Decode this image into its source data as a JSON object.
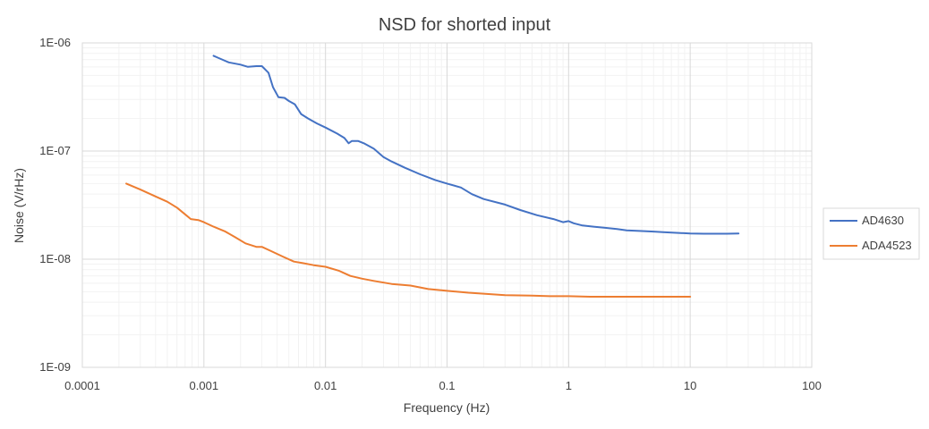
{
  "chart_data": {
    "type": "line",
    "title": "NSD for shorted input",
    "xlabel": "Frequency (Hz)",
    "ylabel": "Noise (V/rHz)",
    "x_scale": "log",
    "y_scale": "log",
    "xlim": [
      0.0001,
      100
    ],
    "ylim": [
      1e-09,
      1e-06
    ],
    "x_ticks": [
      0.0001,
      0.001,
      0.01,
      0.1,
      1,
      10,
      100
    ],
    "x_tick_labels": [
      "0.0001",
      "0.001",
      "0.01",
      "0.1",
      "1",
      "10",
      "100"
    ],
    "y_ticks": [
      1e-09,
      1e-08,
      1e-07,
      1e-06
    ],
    "y_tick_labels": [
      "1E-09",
      "1E-08",
      "1E-07",
      "1E-06"
    ],
    "grid": "major and minor",
    "legend_position": "right",
    "series": [
      {
        "name": "AD4630",
        "color": "#4472C4",
        "x": [
          0.0012,
          0.0013,
          0.0016,
          0.002,
          0.0023,
          0.0027,
          0.003,
          0.0034,
          0.0037,
          0.0041,
          0.0046,
          0.005,
          0.0056,
          0.0063,
          0.0072,
          0.0085,
          0.01,
          0.0125,
          0.0143,
          0.0155,
          0.0165,
          0.0185,
          0.021,
          0.025,
          0.03,
          0.035,
          0.045,
          0.06,
          0.08,
          0.1,
          0.13,
          0.16,
          0.2,
          0.3,
          0.4,
          0.55,
          0.75,
          0.9,
          1,
          1.1,
          1.3,
          1.6,
          2,
          2.5,
          3,
          4,
          5,
          6,
          8,
          10,
          13,
          16,
          20,
          25
        ],
        "y": [
          7.6e-07,
          7.3e-07,
          6.6e-07,
          6.3e-07,
          6e-07,
          6.1e-07,
          6.1e-07,
          5.3e-07,
          3.9e-07,
          3.15e-07,
          3.1e-07,
          2.9e-07,
          2.7e-07,
          2.2e-07,
          2e-07,
          1.8e-07,
          1.65e-07,
          1.45e-07,
          1.32e-07,
          1.18e-07,
          1.24e-07,
          1.24e-07,
          1.17e-07,
          1.05e-07,
          8.8e-08,
          8e-08,
          7e-08,
          6.1e-08,
          5.4e-08,
          5e-08,
          4.6e-08,
          4e-08,
          3.6e-08,
          3.2e-08,
          2.85e-08,
          2.55e-08,
          2.35e-08,
          2.2e-08,
          2.25e-08,
          2.15e-08,
          2.05e-08,
          2e-08,
          1.95e-08,
          1.9e-08,
          1.85e-08,
          1.82e-08,
          1.8e-08,
          1.78e-08,
          1.75e-08,
          1.73e-08,
          1.72e-08,
          1.72e-08,
          1.72e-08,
          1.73e-08
        ]
      },
      {
        "name": "ADA4523",
        "color": "#ED7D31",
        "x": [
          0.00023,
          0.0003,
          0.0004,
          0.0005,
          0.0006,
          0.0007,
          0.00078,
          0.0009,
          0.001,
          0.0012,
          0.0015,
          0.0018,
          0.0022,
          0.0027,
          0.003,
          0.0035,
          0.0045,
          0.0055,
          0.0065,
          0.008,
          0.01,
          0.013,
          0.016,
          0.02,
          0.025,
          0.035,
          0.05,
          0.07,
          0.1,
          0.15,
          0.2,
          0.3,
          0.5,
          0.7,
          1,
          1.5,
          2,
          3,
          5,
          7,
          10
        ],
        "y": [
          5e-08,
          4.4e-08,
          3.8e-08,
          3.4e-08,
          3e-08,
          2.6e-08,
          2.35e-08,
          2.3e-08,
          2.2e-08,
          2e-08,
          1.8e-08,
          1.6e-08,
          1.4e-08,
          1.3e-08,
          1.3e-08,
          1.2e-08,
          1.05e-08,
          9.5e-09,
          9.2e-09,
          8.8e-09,
          8.5e-09,
          7.8e-09,
          7e-09,
          6.6e-09,
          6.3e-09,
          5.9e-09,
          5.7e-09,
          5.3e-09,
          5.1e-09,
          4.9e-09,
          4.8e-09,
          4.65e-09,
          4.6e-09,
          4.55e-09,
          4.55e-09,
          4.5e-09,
          4.5e-09,
          4.5e-09,
          4.5e-09,
          4.5e-09,
          4.5e-09
        ]
      }
    ]
  }
}
